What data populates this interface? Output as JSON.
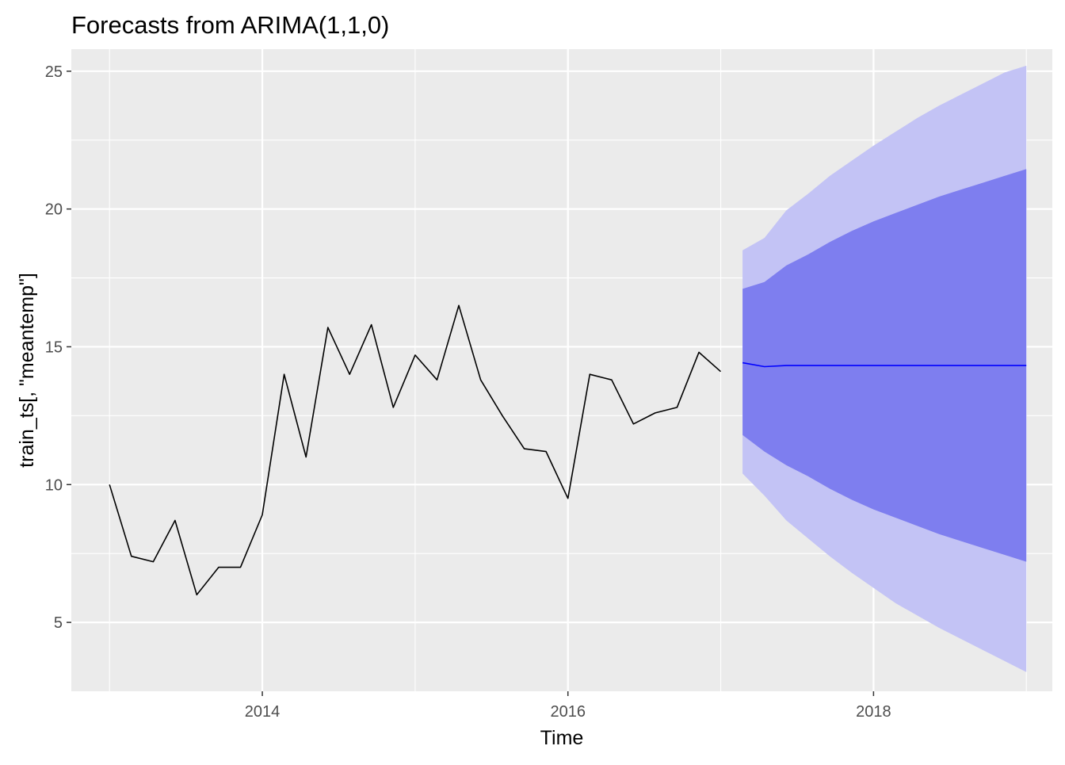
{
  "chart_data": {
    "type": "line",
    "title": "Forecasts from ARIMA(1,1,0)",
    "xlabel": "Time",
    "ylabel": "train_ts[, \"meantemp\"]",
    "xlim": [
      2012.75,
      2019.17
    ],
    "ylim": [
      2.5,
      25.8
    ],
    "x_ticks": [
      2014,
      2016,
      2018
    ],
    "x_tick_labels": [
      "2014",
      "2016",
      "2018"
    ],
    "y_ticks": [
      5,
      10,
      15,
      20,
      25
    ],
    "y_tick_labels": [
      "5",
      "10",
      "15",
      "20",
      "25"
    ],
    "grid": true,
    "colors": {
      "panel_bg": "#EBEBEB",
      "grid": "#FFFFFF",
      "history_line": "#000000",
      "forecast_line": "#0000FF",
      "band_80": "#7E7EEF",
      "band_95": "#C3C3F5",
      "tick_text": "#4D4D4D"
    },
    "history": {
      "x": [
        2013.0,
        2013.143,
        2013.286,
        2013.429,
        2013.571,
        2013.714,
        2013.857,
        2014.0,
        2014.143,
        2014.286,
        2014.429,
        2014.571,
        2014.714,
        2014.857,
        2015.0,
        2015.143,
        2015.286,
        2015.429,
        2015.571,
        2015.714,
        2015.857,
        2016.0,
        2016.143,
        2016.286,
        2016.429,
        2016.571,
        2016.714,
        2016.857,
        2017.0
      ],
      "values": [
        10.0,
        7.4,
        7.2,
        8.7,
        6.0,
        7.0,
        7.0,
        8.9,
        14.0,
        11.0,
        15.7,
        14.0,
        15.8,
        12.8,
        14.7,
        13.8,
        16.5,
        13.8,
        12.5,
        11.3,
        11.2,
        9.5,
        14.0,
        13.8,
        12.2,
        12.6,
        12.8,
        14.8,
        14.1
      ]
    },
    "forecast": {
      "x": [
        2017.143,
        2017.286,
        2017.429,
        2017.571,
        2017.714,
        2017.857,
        2018.0,
        2018.143,
        2018.286,
        2018.429,
        2018.571,
        2018.714,
        2018.857,
        2019.0
      ],
      "mean": [
        14.42,
        14.28,
        14.32,
        14.32,
        14.32,
        14.32,
        14.32,
        14.32,
        14.32,
        14.32,
        14.32,
        14.32,
        14.32,
        14.32
      ],
      "lo80": [
        11.8,
        11.2,
        10.7,
        10.3,
        9.85,
        9.45,
        9.1,
        8.8,
        8.5,
        8.2,
        7.95,
        7.7,
        7.45,
        7.2
      ],
      "hi80": [
        17.1,
        17.35,
        17.95,
        18.35,
        18.8,
        19.2,
        19.55,
        19.85,
        20.15,
        20.45,
        20.7,
        20.95,
        21.2,
        21.45
      ],
      "lo95": [
        10.4,
        9.6,
        8.7,
        8.05,
        7.4,
        6.8,
        6.25,
        5.7,
        5.25,
        4.8,
        4.4,
        4.0,
        3.6,
        3.2
      ],
      "hi95": [
        18.5,
        18.95,
        19.95,
        20.55,
        21.2,
        21.75,
        22.3,
        22.8,
        23.3,
        23.75,
        24.15,
        24.55,
        24.95,
        25.2
      ]
    }
  }
}
